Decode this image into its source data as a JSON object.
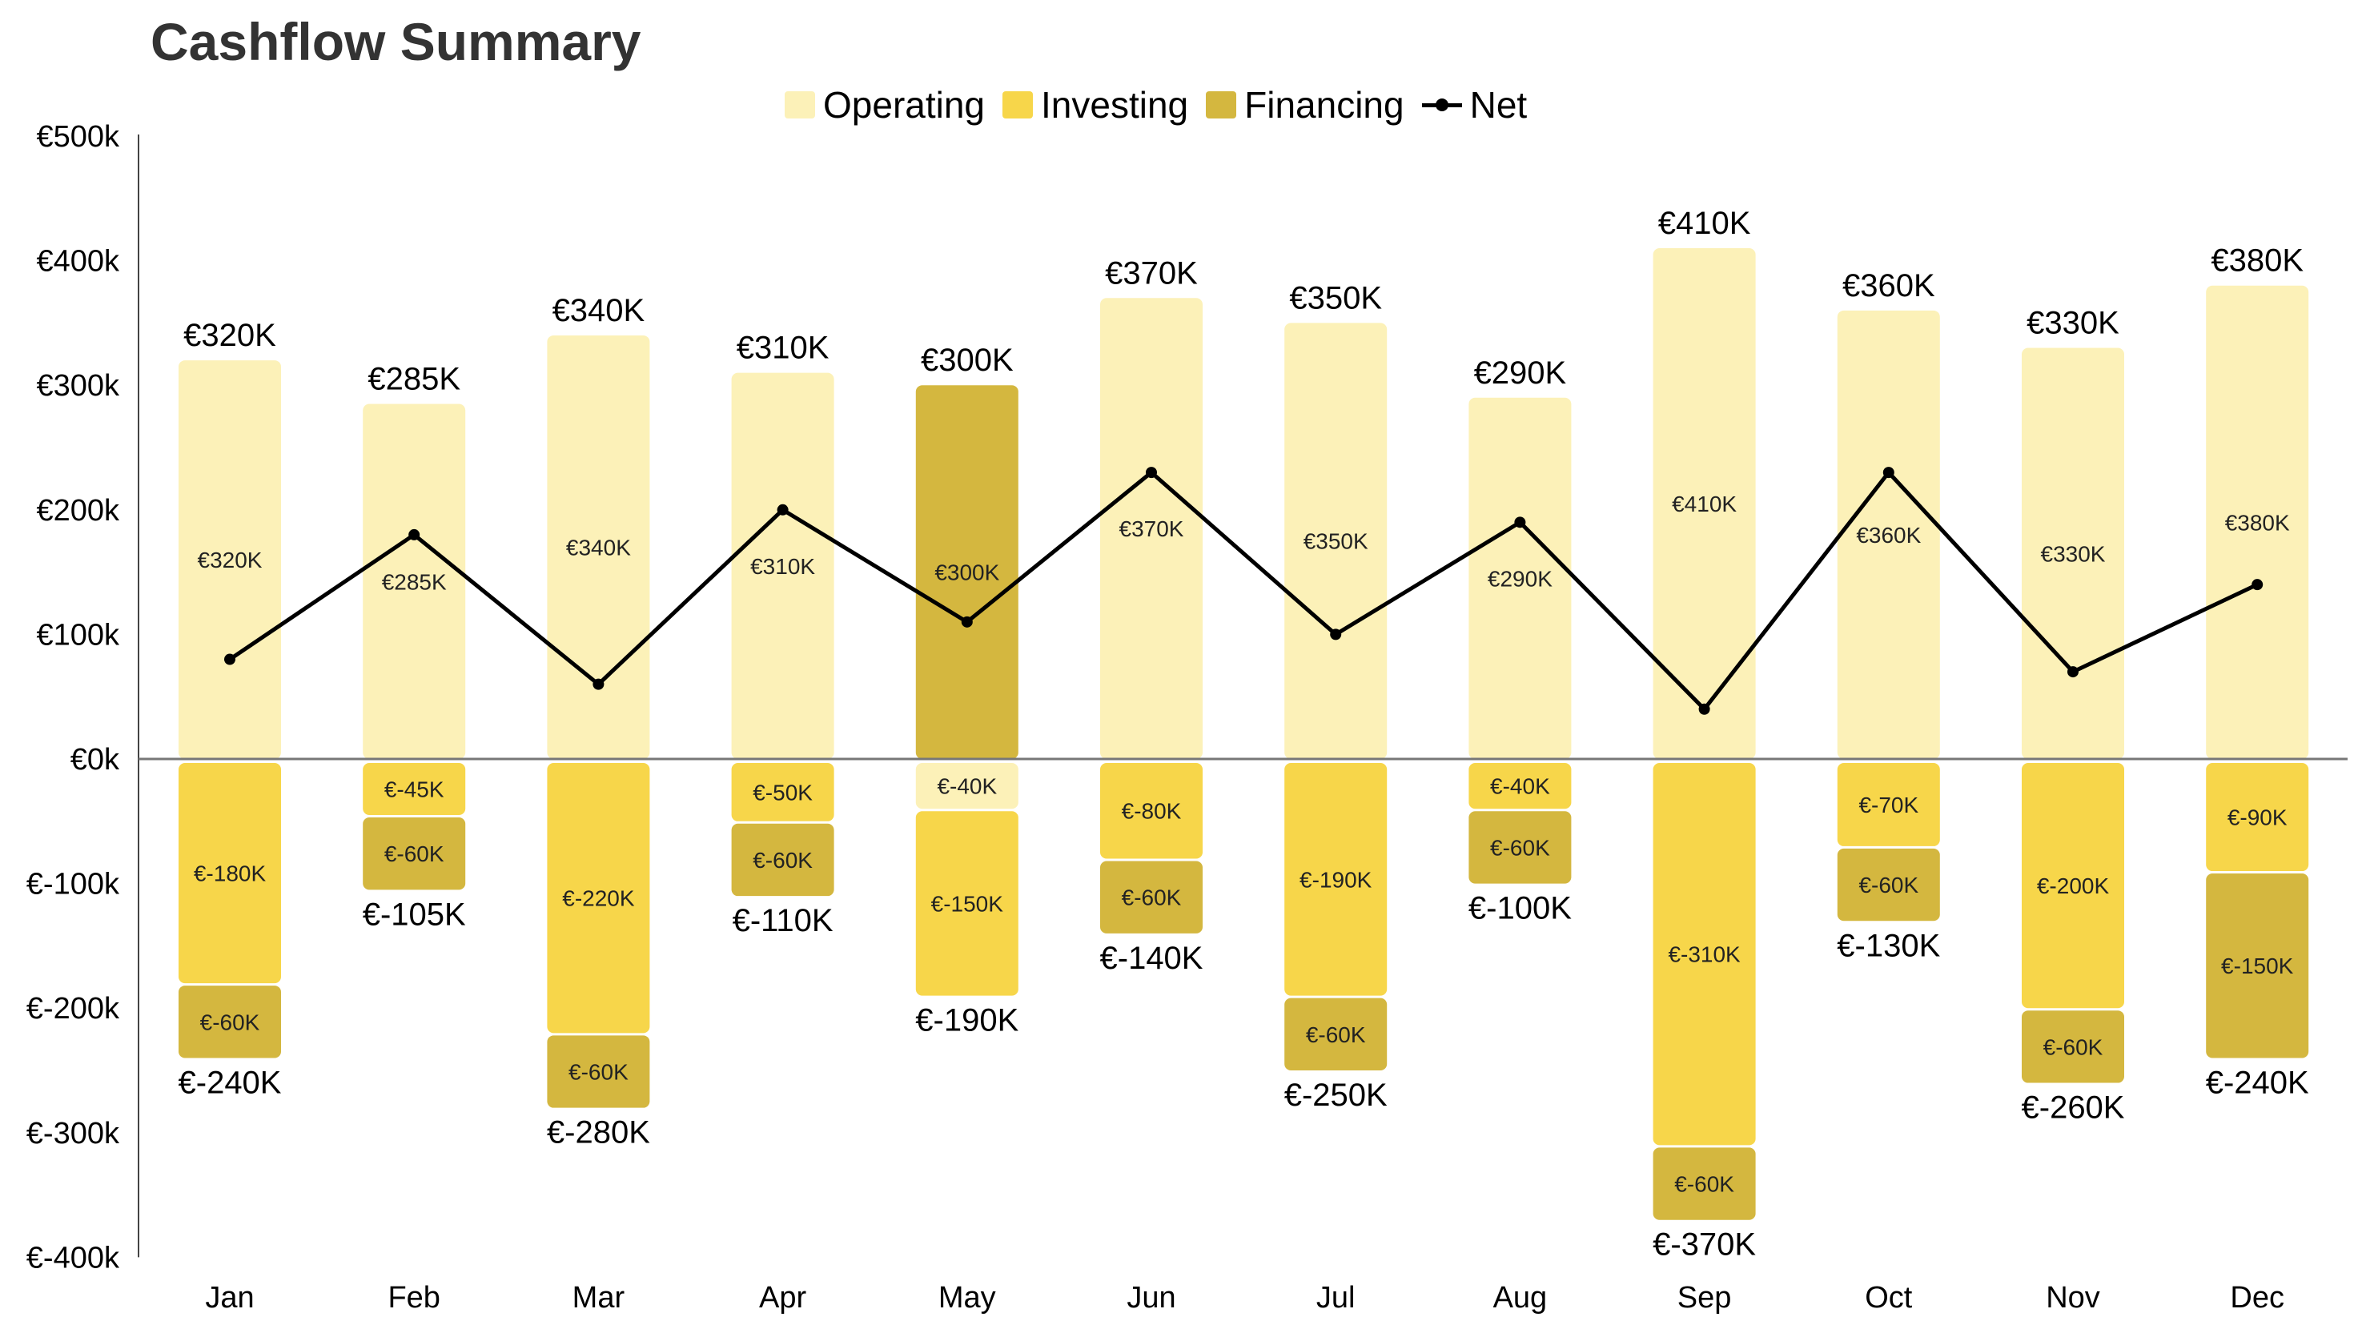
{
  "chart_data": {
    "type": "bar",
    "title": "Cashflow Summary",
    "categories": [
      "Jan",
      "Feb",
      "Mar",
      "Apr",
      "May",
      "Jun",
      "Jul",
      "Aug",
      "Sep",
      "Oct",
      "Nov",
      "Dec"
    ],
    "series": [
      {
        "name": "Operating",
        "color": "#FCF1B8",
        "values": [
          320,
          285,
          340,
          310,
          -40,
          370,
          350,
          290,
          410,
          360,
          330,
          380
        ]
      },
      {
        "name": "Investing",
        "color": "#F7D64A",
        "values": [
          -180,
          -45,
          -220,
          -50,
          -150,
          -80,
          -190,
          -40,
          -310,
          -70,
          -200,
          -90
        ]
      },
      {
        "name": "Financing",
        "color": "#D4B73F",
        "values": [
          -60,
          -60,
          -60,
          -60,
          300,
          -60,
          -60,
          -60,
          -60,
          -60,
          -60,
          -150
        ]
      },
      {
        "name": "Net",
        "type": "line",
        "color": "#000000",
        "values": [
          80,
          180,
          60,
          200,
          110,
          230,
          100,
          190,
          40,
          230,
          70,
          140
        ]
      }
    ],
    "positive_totals": [
      "€320K",
      "€285K",
      "€340K",
      "€310K",
      "€300K",
      "€370K",
      "€350K",
      "€290K",
      "€410K",
      "€360K",
      "€330K",
      "€380K"
    ],
    "negative_totals": [
      "€-240K",
      "€-105K",
      "€-280K",
      "€-110K",
      "€-190K",
      "€-140K",
      "€-250K",
      "€-100K",
      "€-370K",
      "€-130K",
      "€-260K",
      "€-240K"
    ],
    "unit": "€ thousands",
    "ylim": [
      -400,
      500
    ],
    "yticks": [
      "€-400k",
      "€-300k",
      "€-200k",
      "€-100k",
      "€0k",
      "€100k",
      "€200k",
      "€300k",
      "€400k",
      "€500k"
    ],
    "ytick_values": [
      -400,
      -300,
      -200,
      -100,
      0,
      100,
      200,
      300,
      400,
      500
    ],
    "stacked": true,
    "grid": false,
    "legend": "top-center"
  }
}
